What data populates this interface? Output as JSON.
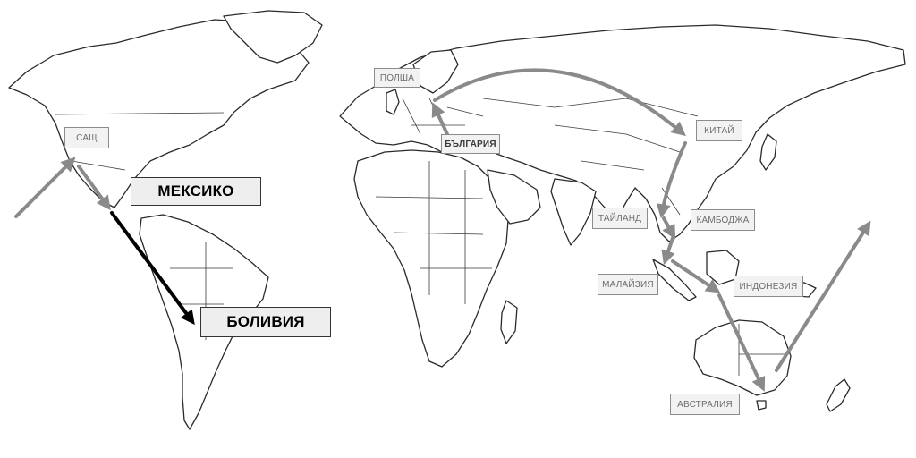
{
  "labels": {
    "usa": "САЩ",
    "mexico": "МЕКСИКО",
    "bolivia": "БОЛИВИЯ",
    "poland": "ПОЛША",
    "bulgaria": "БЪЛГАРИЯ",
    "china": "КИТАЙ",
    "thailand": "ТАЙЛАНД",
    "cambodia": "КАМБОДЖА",
    "malaysia": "МАЛАЙЗИЯ",
    "indonesia": "ИНДОНЕЗИЯ",
    "australia": "АВСТРАЛИЯ"
  },
  "colors": {
    "route_gray": "#8a8a8a",
    "route_black": "#000000",
    "label_fill": "#f2f2f2"
  }
}
